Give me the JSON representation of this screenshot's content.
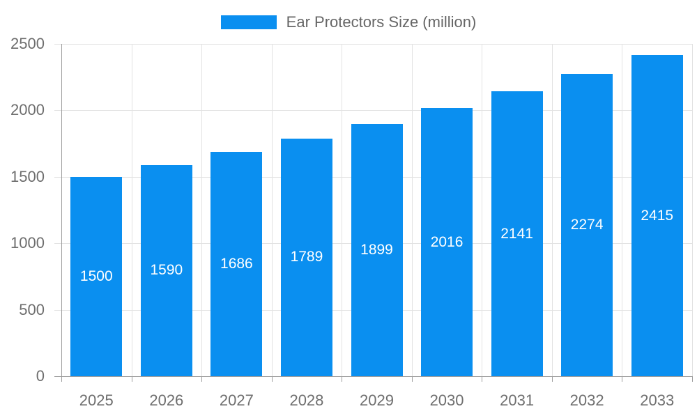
{
  "chart_data": {
    "type": "bar",
    "title": "Ear Protectors Size (million)",
    "series_name": "Ear Protectors Size (million)",
    "categories": [
      "2025",
      "2026",
      "2027",
      "2028",
      "2029",
      "2030",
      "2031",
      "2032",
      "2033"
    ],
    "values": [
      1500,
      1590,
      1686,
      1789,
      1899,
      2016,
      2141,
      2274,
      2415
    ],
    "xlabel": "",
    "ylabel": "",
    "ylim": [
      0,
      2500
    ],
    "yticks": [
      0,
      500,
      1000,
      1500,
      2000,
      2500
    ],
    "grid": true,
    "bar_labels_inside": true,
    "legend": {
      "position": "top",
      "entries": [
        "Ear Protectors Size (million)"
      ]
    }
  },
  "colors": {
    "bar": "#0a8ff0",
    "bar_label": "#ffffff",
    "axis_line": "#9e9e9e",
    "grid_line": "#e2e2e2",
    "tick_label": "#6e6e6e",
    "legend_text": "#666666",
    "background": "#ffffff"
  }
}
